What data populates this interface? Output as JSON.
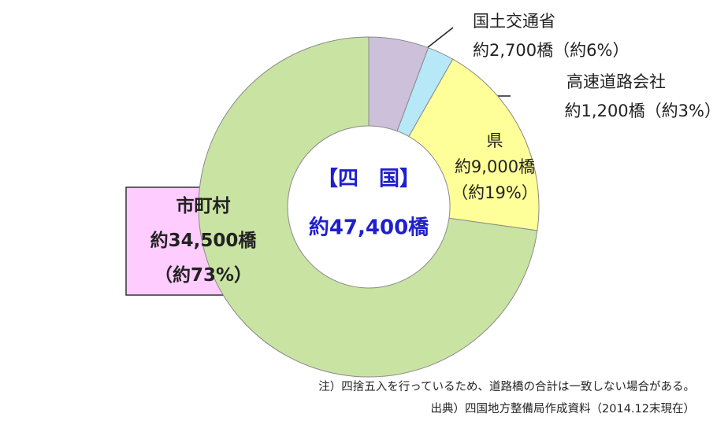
{
  "chart_data": {
    "type": "pie",
    "donut": true,
    "center_title": "【四　国】",
    "center_label": "約47,400橋",
    "categories": [
      "国土交通省",
      "高速道路会社",
      "県",
      "市町村"
    ],
    "values": [
      2700,
      1200,
      9000,
      34500
    ],
    "value_labels": [
      "約2,700橋",
      "約1,200橋",
      "約9,000橋",
      "約34,500橋"
    ],
    "percent_labels": [
      "（約6%）",
      "（約3%）",
      "（約19%）",
      "（約73%）"
    ],
    "colors": [
      "#ccc0da",
      "#b7e8f7",
      "#ffff99",
      "#c9e3a3"
    ],
    "notes": [
      "注）四捨五入を行っているため、道路橋の合計は一致しない場合がある。",
      "出典）四国地方整備局作成資料（2014.12末現在）"
    ]
  }
}
